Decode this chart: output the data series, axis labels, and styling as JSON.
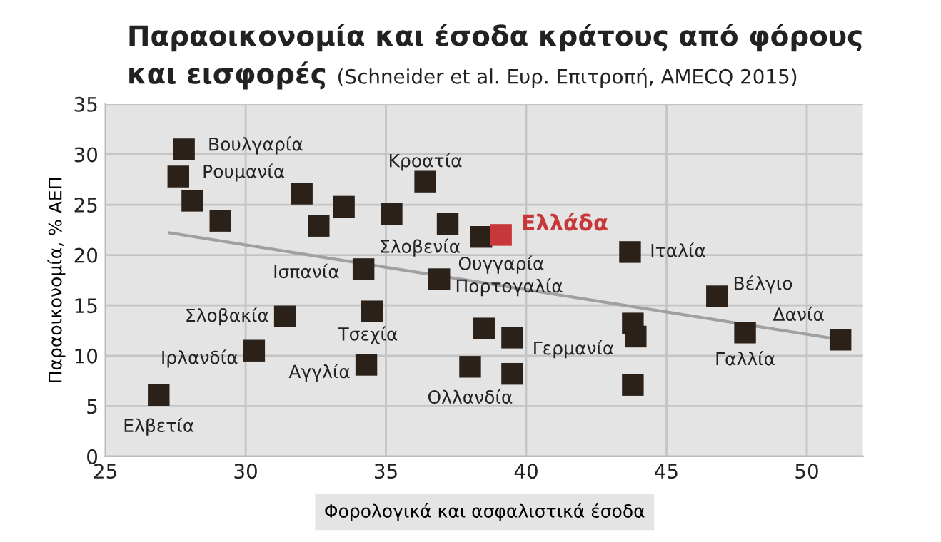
{
  "chart_data": {
    "type": "scatter",
    "title": "Παραοικονομία και έσοδα κράτους από φόρους\nκαι εισφορές",
    "subtitle": "(Schneider et al. Ευρ. Επιτροπή, AMECQ 2015)",
    "xlabel": "Φορολογικά και ασφαλιστικά έσοδα",
    "ylabel": "Παραοικονομία, % ΑΕΠ",
    "xlim": [
      25,
      52
    ],
    "ylim": [
      0,
      35
    ],
    "xticks": [
      25,
      30,
      35,
      40,
      45,
      50
    ],
    "yticks": [
      0,
      5,
      10,
      15,
      20,
      25,
      30,
      35
    ],
    "grid": true,
    "marker": "square",
    "series": [
      {
        "color": "#2b2118",
        "x": [
          27.8,
          27.6,
          28.1,
          29.1,
          32.0,
          33.5,
          32.6,
          35.2,
          36.4,
          37.2,
          38.4,
          34.2,
          36.9,
          31.4,
          34.5,
          30.3,
          34.3,
          26.9,
          38.5,
          39.5,
          38.0,
          39.5,
          43.7,
          43.8,
          43.9,
          43.8,
          46.8,
          47.8,
          51.2
        ],
        "values": [
          30.5,
          27.8,
          25.4,
          23.4,
          26.1,
          24.8,
          22.9,
          24.1,
          27.3,
          23.1,
          21.8,
          18.6,
          17.6,
          13.9,
          14.4,
          10.5,
          9.1,
          6.1,
          12.7,
          11.8,
          8.9,
          8.2,
          20.3,
          13.2,
          11.9,
          7.1,
          15.9,
          12.3,
          11.6
        ]
      },
      {
        "name": "Ελλάδα",
        "color": "#c8383a",
        "x": [
          39.1
        ],
        "values": [
          22.0
        ]
      },
      {
        "type": "line",
        "marker": "none",
        "color": "#a0a0a0",
        "x": [
          27.3,
          51.2
        ],
        "values": [
          22.2,
          11.6
        ]
      }
    ],
    "annotations": [
      {
        "text": "Βουλγαρία",
        "x": 27.8,
        "y": 30.5
      },
      {
        "text": "Ρουμανία",
        "x": 27.6,
        "y": 27.8
      },
      {
        "text": "Κροατία",
        "x": 36.4,
        "y": 27.3
      },
      {
        "text": "Σλοβενία",
        "x": 37.2,
        "y": 23.1
      },
      {
        "text": "Ουγγαρία",
        "x": 38.4,
        "y": 21.8
      },
      {
        "text": "Πορτογαλία",
        "x": 36.9,
        "y": 17.6
      },
      {
        "text": "Ισπανία",
        "x": 34.2,
        "y": 18.6
      },
      {
        "text": "Σλοβακία",
        "x": 31.4,
        "y": 13.9
      },
      {
        "text": "Τσεχία",
        "x": 34.5,
        "y": 14.4
      },
      {
        "text": "Ιρλανδία",
        "x": 30.3,
        "y": 10.5
      },
      {
        "text": "Αγγλία",
        "x": 34.3,
        "y": 9.1
      },
      {
        "text": "Ελβετία",
        "x": 26.9,
        "y": 6.1
      },
      {
        "text": "Ολλανδία",
        "x": 38.0,
        "y": 8.9
      },
      {
        "text": "Γερμανία",
        "x": 43.8,
        "y": 13.2
      },
      {
        "text": "Ιταλία",
        "x": 43.7,
        "y": 20.3
      },
      {
        "text": "Βέλγιο",
        "x": 46.8,
        "y": 15.9
      },
      {
        "text": "Γαλλία",
        "x": 47.8,
        "y": 12.3
      },
      {
        "text": "Δανία",
        "x": 51.2,
        "y": 11.6
      }
    ]
  }
}
